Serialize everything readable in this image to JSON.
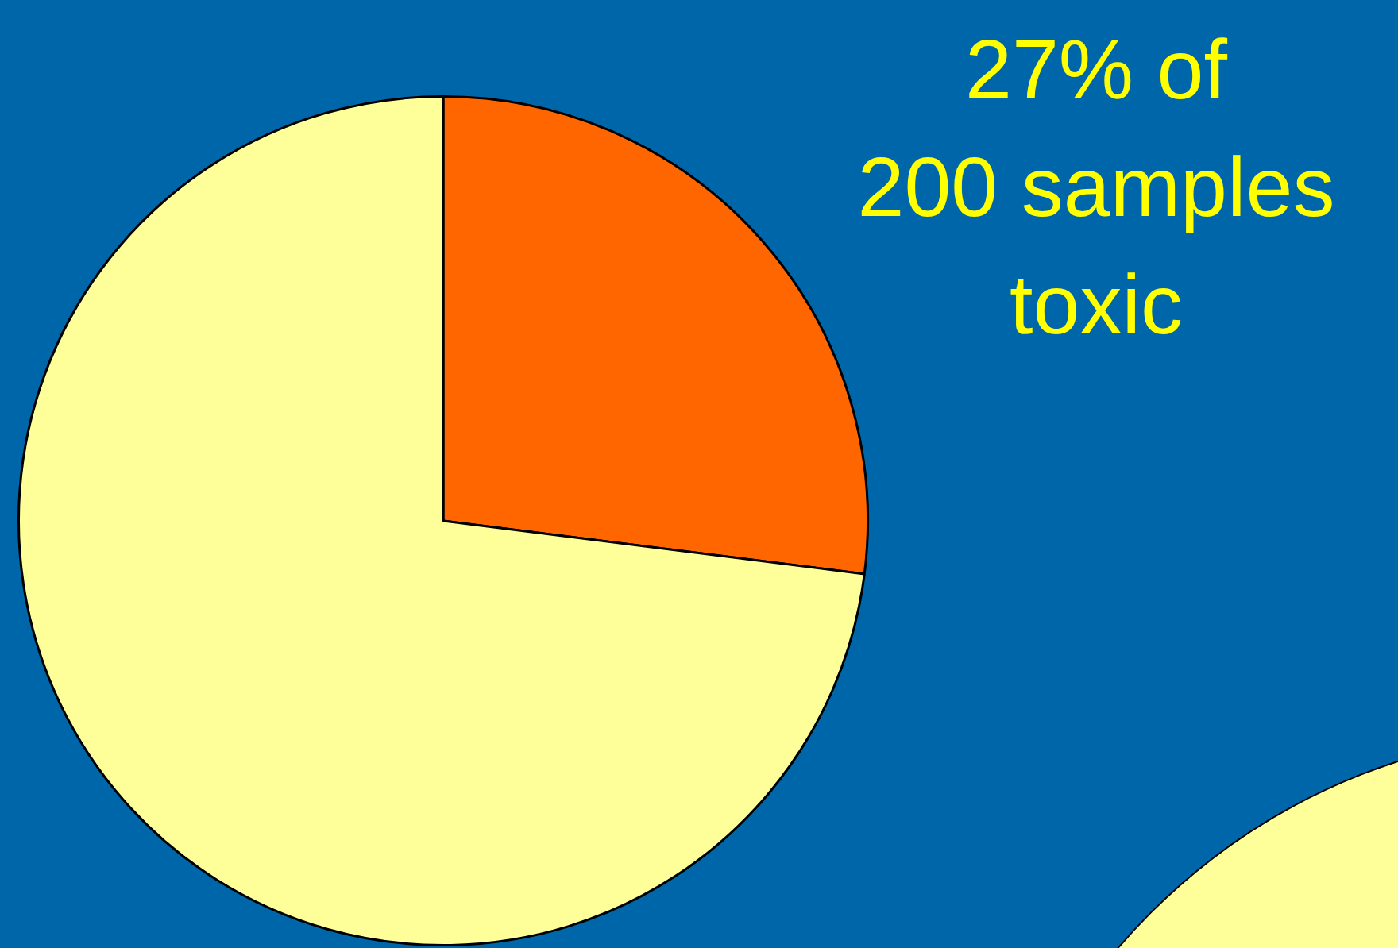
{
  "chart_data": {
    "type": "pie",
    "title": "27% of 200 samples toxic",
    "categories": [
      null,
      null
    ],
    "values": [
      27,
      73
    ],
    "colors": [
      "#ff6600",
      "#ffff99"
    ],
    "legend": false
  }
}
